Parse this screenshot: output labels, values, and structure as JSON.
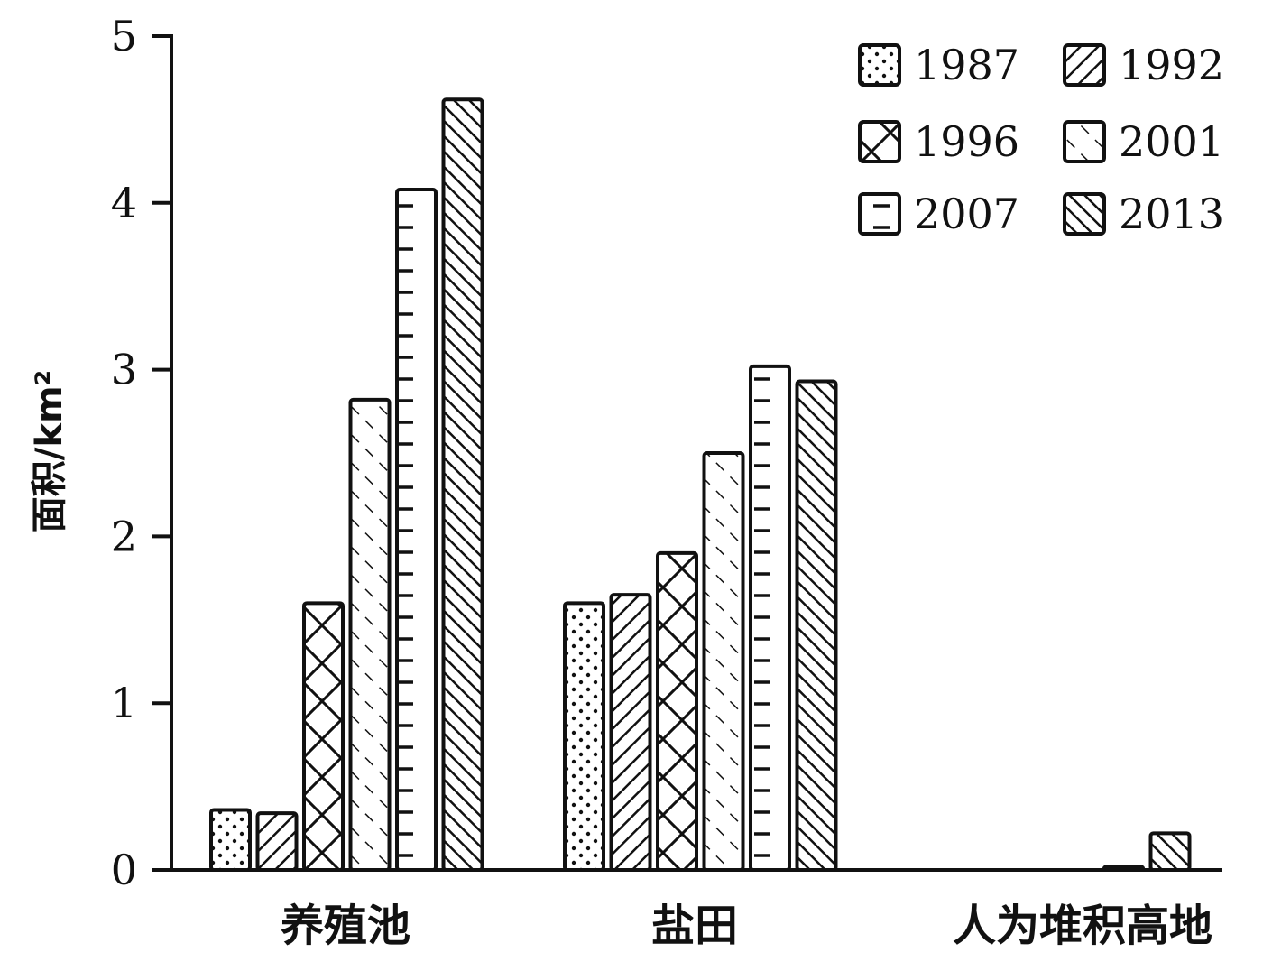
{
  "chart_data": {
    "type": "bar",
    "ylabel": "面积/km²",
    "ylim": [
      0,
      5
    ],
    "yticks": [
      "0",
      "1",
      "2",
      "3",
      "4",
      "5"
    ],
    "categories": [
      "养殖池",
      "盐田",
      "人为堆积高地"
    ],
    "legend_position": "top-right",
    "grid": false,
    "series": [
      {
        "name": "1987",
        "pattern": "dots",
        "values": [
          0.36,
          1.6,
          0
        ]
      },
      {
        "name": "1992",
        "pattern": "back-diagonal",
        "values": [
          0.34,
          1.65,
          0
        ]
      },
      {
        "name": "1996",
        "pattern": "cross-hatch",
        "values": [
          1.6,
          1.9,
          0
        ]
      },
      {
        "name": "2001",
        "pattern": "dashed-diagonal",
        "values": [
          2.82,
          2.5,
          0
        ]
      },
      {
        "name": "2007",
        "pattern": "dashes",
        "values": [
          4.08,
          3.02,
          0.02
        ]
      },
      {
        "name": "2013",
        "pattern": "dense-diagonal",
        "values": [
          4.62,
          2.93,
          0.22
        ]
      }
    ],
    "colors": {
      "ink": "#111111",
      "background": "#ffffff"
    }
  }
}
